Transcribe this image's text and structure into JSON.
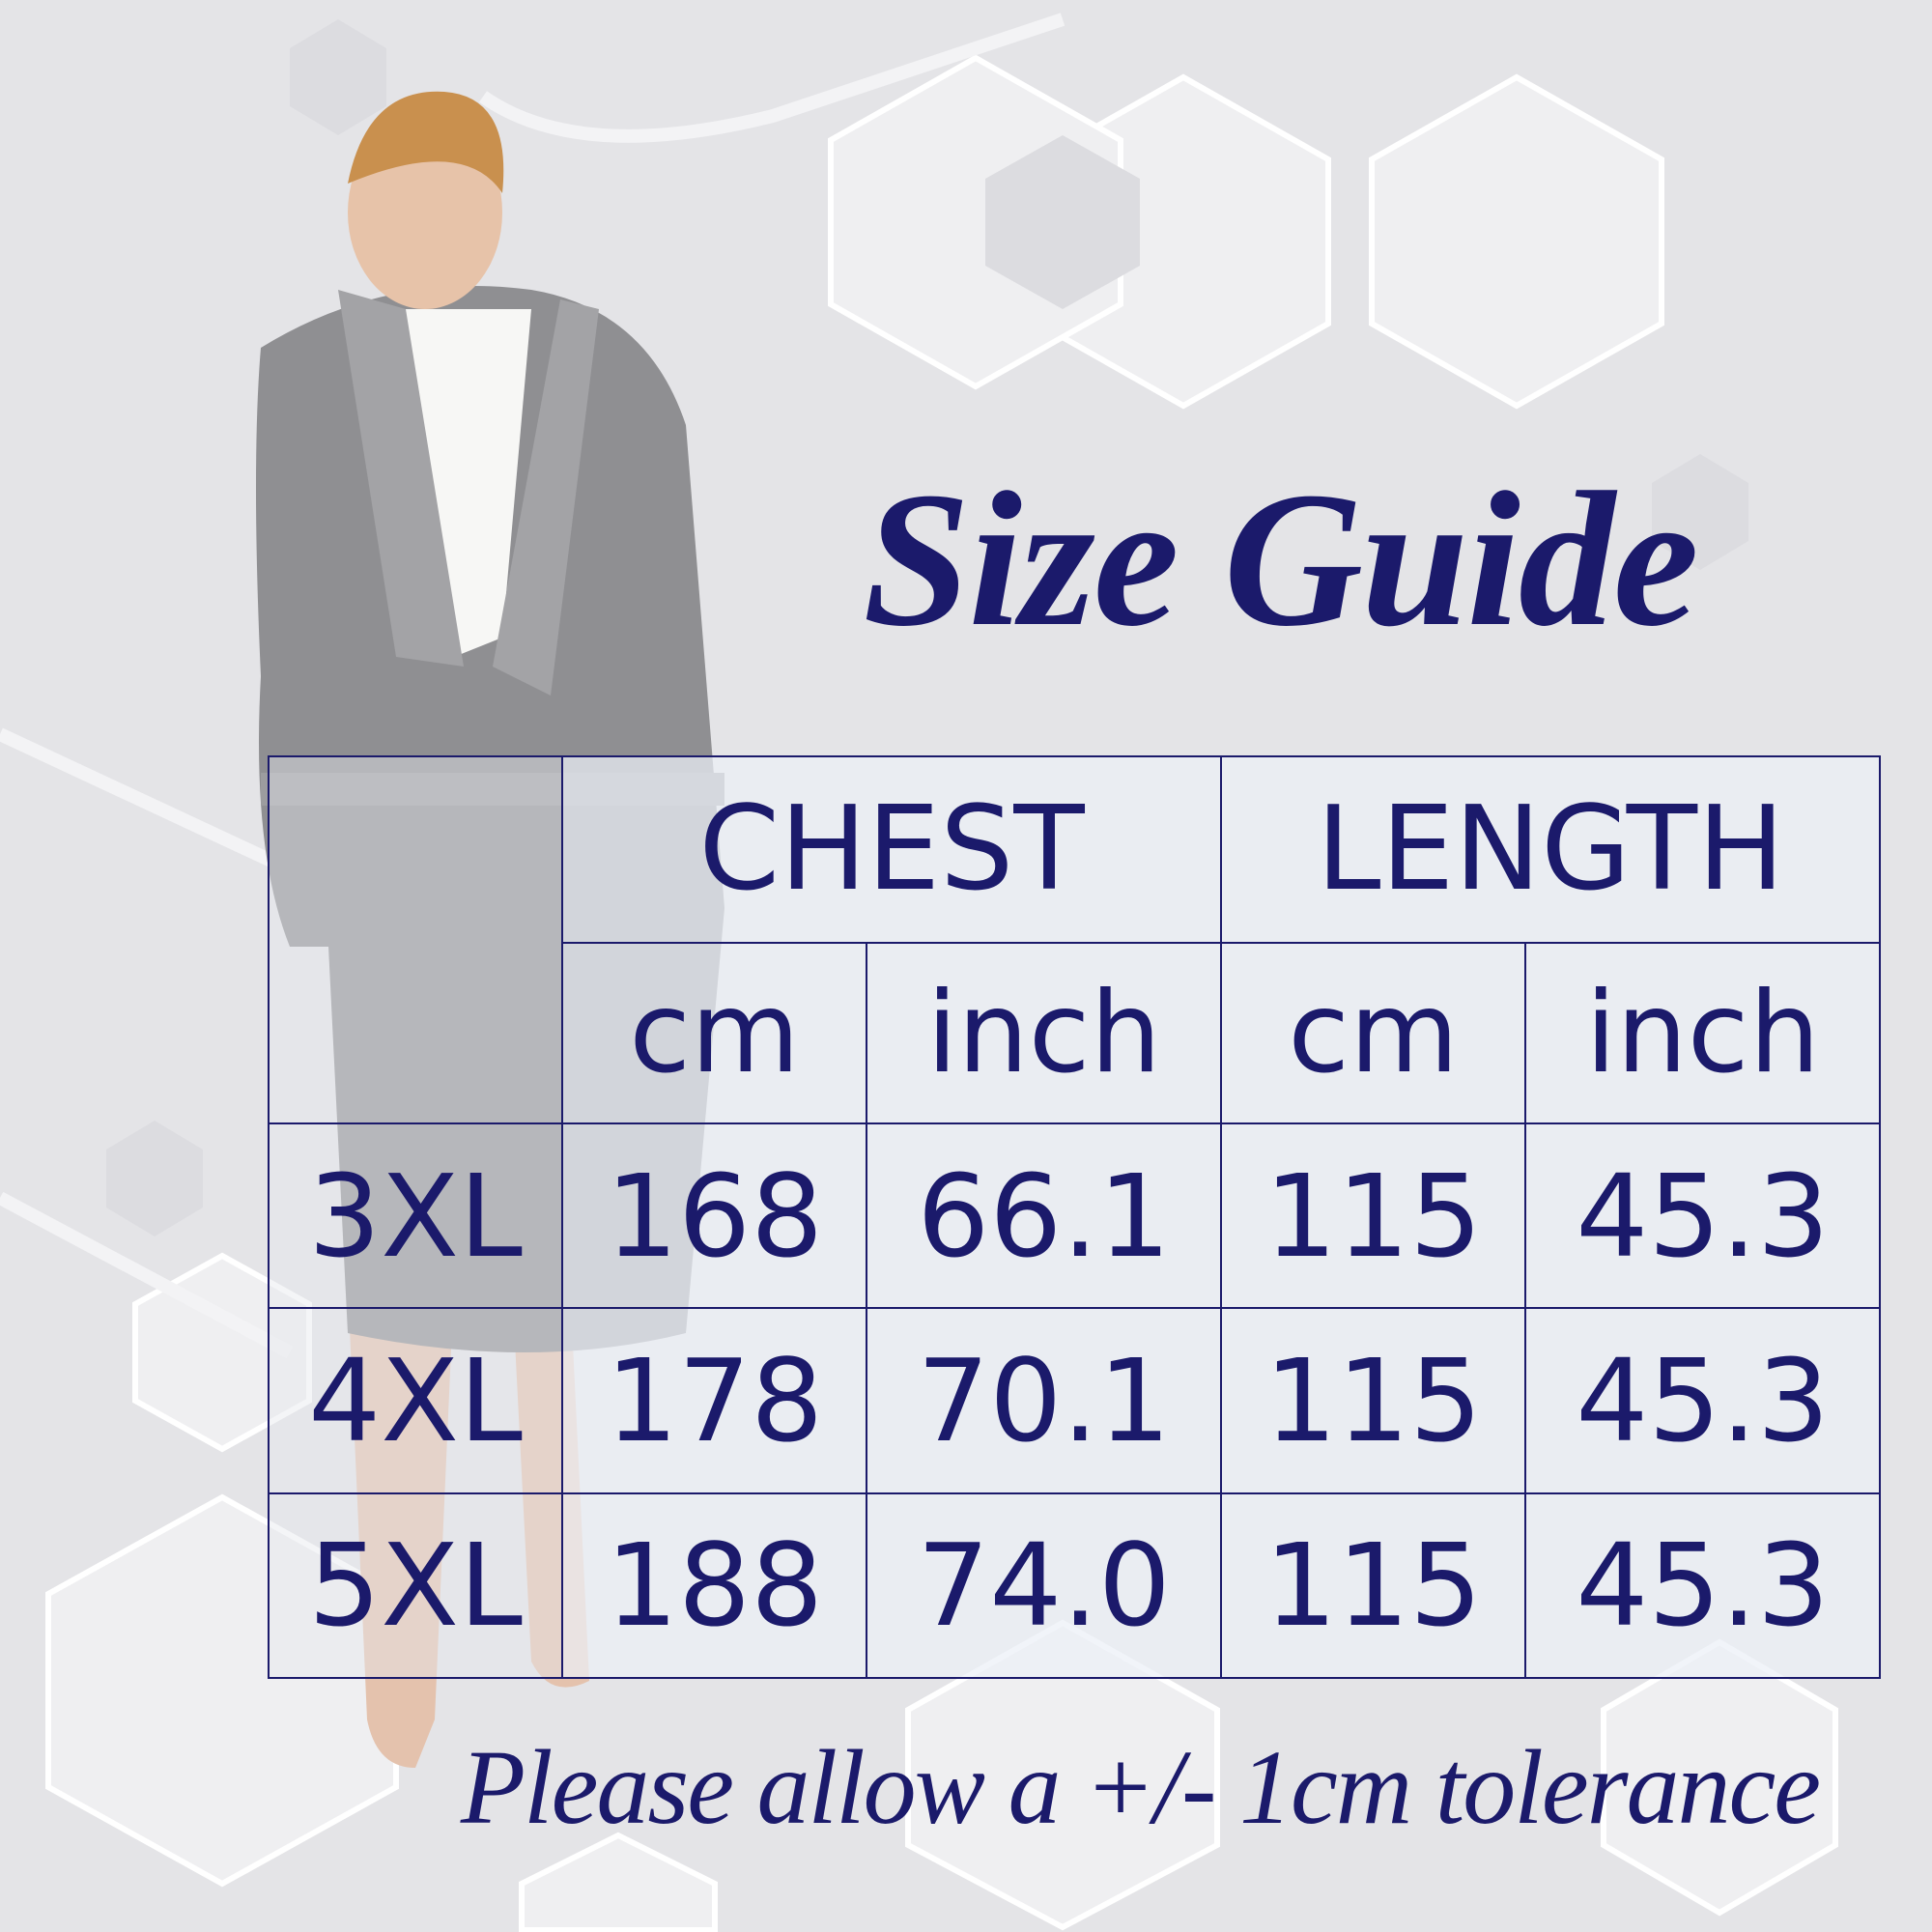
{
  "title": "Size Guide",
  "accent_color": "#1b1a6b",
  "image": {
    "subject": "model-in-grey-hooded-robe"
  },
  "table": {
    "groups": [
      "CHEST",
      "LENGTH"
    ],
    "units": [
      "cm",
      "inch",
      "cm",
      "inch"
    ],
    "rows": [
      {
        "size": "3XL",
        "values": [
          "168",
          "66.1",
          "115",
          "45.3"
        ]
      },
      {
        "size": "4XL",
        "values": [
          "178",
          "70.1",
          "115",
          "45.3"
        ]
      },
      {
        "size": "5XL",
        "values": [
          "188",
          "74.0",
          "115",
          "45.3"
        ]
      }
    ]
  },
  "footer": "Please allow a +/- 1cm tolerance"
}
